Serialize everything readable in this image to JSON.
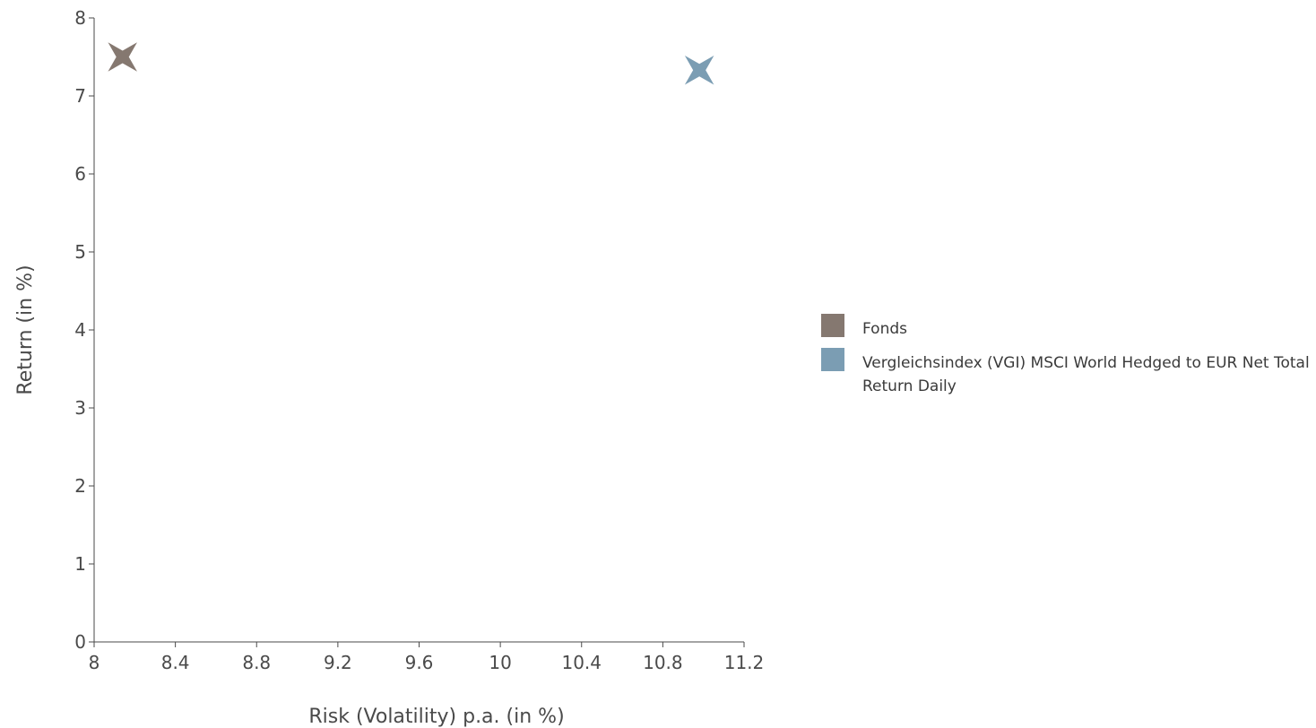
{
  "chart_data": {
    "type": "scatter",
    "title": "",
    "xlabel": "Risk (Volatility) p.a. (in %)",
    "ylabel": "Return (in %)",
    "xlim": [
      8,
      11.2
    ],
    "ylim": [
      0,
      8
    ],
    "xticks": [
      "8",
      "8.4",
      "8.8",
      "9.2",
      "9.6",
      "10",
      "10.4",
      "10.8",
      "11.2"
    ],
    "yticks": [
      "0",
      "1",
      "2",
      "3",
      "4",
      "5",
      "6",
      "7",
      "8"
    ],
    "grid": false,
    "legend_position": "right",
    "marker": "four-pointed-star",
    "series": [
      {
        "name": "Fonds",
        "color": "#857870",
        "points": [
          {
            "x": 8.14,
            "y": 7.5
          }
        ]
      },
      {
        "name": "Vergleichsindex (VGI) MSCI World Hedged to EUR Net Total Return Daily",
        "color": "#7b9db3",
        "points": [
          {
            "x": 10.98,
            "y": 7.33
          }
        ]
      }
    ]
  }
}
